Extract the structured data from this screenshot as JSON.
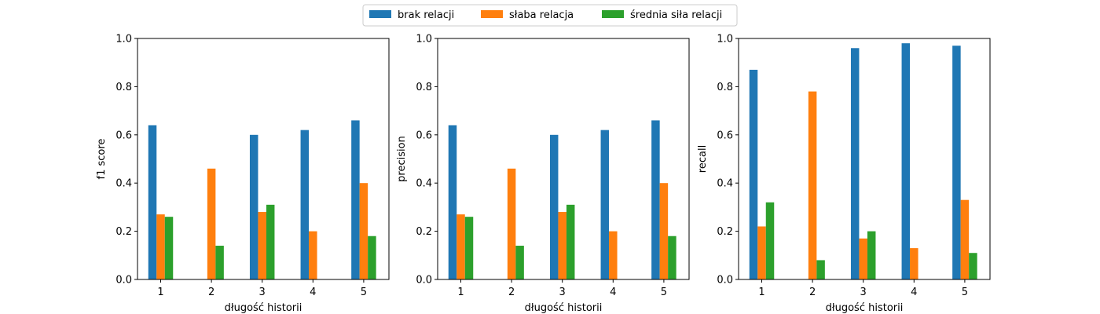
{
  "legend": {
    "placement": "top-center",
    "entries": [
      {
        "label": "brak relacji",
        "color": "#1f77b4"
      },
      {
        "label": "słaba relacja",
        "color": "#ff7f0e"
      },
      {
        "label": "średnia siła relacji",
        "color": "#2ca02c"
      }
    ]
  },
  "chart_data": [
    {
      "type": "bar",
      "categories": [
        "1",
        "2",
        "3",
        "4",
        "5"
      ],
      "xlabel": "długość historii",
      "ylabel": "f1 score",
      "ylim": [
        0,
        1
      ],
      "yticks": [
        "0.0",
        "0.2",
        "0.4",
        "0.6",
        "0.8",
        "1.0"
      ],
      "grid": false,
      "series": [
        {
          "name": "brak relacji",
          "values": [
            0.64,
            0,
            0.6,
            0.62,
            0.66
          ]
        },
        {
          "name": "słaba relacja",
          "values": [
            0.27,
            0.46,
            0.28,
            0.2,
            0.4
          ]
        },
        {
          "name": "średnia siła relacji",
          "values": [
            0.26,
            0.14,
            0.31,
            0,
            0.18
          ]
        }
      ]
    },
    {
      "type": "bar",
      "categories": [
        "1",
        "2",
        "3",
        "4",
        "5"
      ],
      "xlabel": "długość historii",
      "ylabel": "precision",
      "ylim": [
        0,
        1
      ],
      "yticks": [
        "0.0",
        "0.2",
        "0.4",
        "0.6",
        "0.8",
        "1.0"
      ],
      "grid": false,
      "series": [
        {
          "name": "brak relacji",
          "values": [
            0.64,
            0,
            0.6,
            0.62,
            0.66
          ]
        },
        {
          "name": "słaba relacja",
          "values": [
            0.27,
            0.46,
            0.28,
            0.2,
            0.4
          ]
        },
        {
          "name": "średnia siła relacji",
          "values": [
            0.26,
            0.14,
            0.31,
            0,
            0.18
          ]
        }
      ]
    },
    {
      "type": "bar",
      "categories": [
        "1",
        "2",
        "3",
        "4",
        "5"
      ],
      "xlabel": "długość historii",
      "ylabel": "recall",
      "ylim": [
        0,
        1
      ],
      "yticks": [
        "0.0",
        "0.2",
        "0.4",
        "0.6",
        "0.8",
        "1.0"
      ],
      "grid": false,
      "series": [
        {
          "name": "brak relacji",
          "values": [
            0.87,
            0,
            0.96,
            0.98,
            0.97
          ]
        },
        {
          "name": "słaba relacja",
          "values": [
            0.22,
            0.78,
            0.17,
            0.13,
            0.33
          ]
        },
        {
          "name": "średnia siła relacji",
          "values": [
            0.32,
            0.08,
            0.2,
            0,
            0.11
          ]
        }
      ]
    }
  ]
}
